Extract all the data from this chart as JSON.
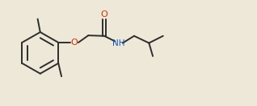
{
  "bg_color": "#ede8d8",
  "line_color": "#2d2d2d",
  "o_color": "#cc3300",
  "n_color": "#1155bb",
  "line_width": 1.4,
  "font_size": 7.5,
  "figsize": [
    3.18,
    1.32
  ],
  "dpi": 100,
  "xlim": [
    0,
    10
  ],
  "ylim": [
    0,
    4.15
  ]
}
